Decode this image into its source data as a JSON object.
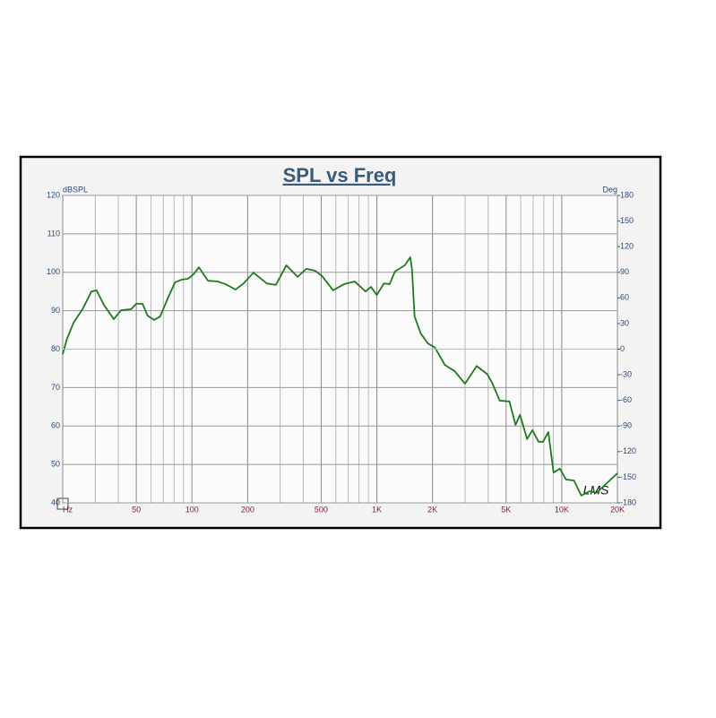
{
  "chart_data": {
    "type": "line",
    "title": "SPL vs Freq",
    "y_label": "dBSPL",
    "y2_label": "Deg",
    "annotation": "LMS",
    "xscale": "log",
    "grid": true,
    "xlim": [
      20,
      20000
    ],
    "xticks": [
      {
        "value": 20,
        "label": "Hz"
      },
      50,
      100,
      200,
      500,
      {
        "value": 1000,
        "label": "1K"
      },
      {
        "value": 2000,
        "label": "2K"
      },
      {
        "value": 5000,
        "label": "5K"
      },
      {
        "value": 10000,
        "label": "10K"
      },
      {
        "value": 20000,
        "label": "20K"
      }
    ],
    "x_minor_ticks": [
      30,
      40,
      60,
      70,
      80,
      90,
      300,
      400,
      600,
      700,
      800,
      900,
      3000,
      4000,
      6000,
      7000,
      8000,
      9000
    ],
    "ylim": [
      40,
      120
    ],
    "yticks": [
      40,
      50,
      60,
      70,
      80,
      90,
      100,
      110,
      120
    ],
    "y2lim": [
      -180,
      180
    ],
    "y2ticks": [
      -180,
      -150,
      -120,
      -90,
      -60,
      -30,
      0,
      30,
      60,
      90,
      120,
      150,
      180
    ],
    "x": [
      20,
      21.1,
      22.9,
      25.6,
      28.6,
      30.5,
      33.4,
      37.8,
      41.3,
      46.9,
      50,
      54,
      57.6,
      62.4,
      67.3,
      74,
      81,
      88,
      95,
      102,
      109,
      122,
      138,
      152,
      172,
      190,
      215,
      254,
      284,
      324,
      373,
      415,
      463,
      506,
      580,
      664,
      759,
      869,
      929,
      1000,
      1092,
      1172,
      1252,
      1416,
      1515,
      1548,
      1600,
      1726,
      1887,
      2061,
      2331,
      2632,
      2997,
      3465,
      3954,
      4224,
      4616,
      5208,
      5624,
      5947,
      6494,
      6939,
      7490,
      7925,
      8459,
      9031,
      9758,
      10542,
      11647,
      12751,
      14095,
      15401,
      17956,
      20000
    ],
    "series": [
      {
        "color": "#1f7a1f",
        "values": [
          78.7,
          82.7,
          86.9,
          90.4,
          95,
          95.3,
          91.5,
          87.8,
          90.1,
          90.4,
          91.8,
          91.8,
          88.7,
          87.6,
          88.5,
          93.2,
          97.4,
          98.1,
          98.3,
          99.5,
          101.3,
          97.8,
          97.6,
          96.9,
          95.5,
          97.1,
          99.9,
          97.1,
          96.7,
          101.8,
          98.8,
          100.9,
          100.4,
          99,
          95.3,
          96.9,
          97.6,
          95,
          96.2,
          94.1,
          97.1,
          96.9,
          100.2,
          101.8,
          103.9,
          100.9,
          88.5,
          84.1,
          81.5,
          80.4,
          75.9,
          74.3,
          71,
          75.6,
          73.5,
          71,
          66.6,
          66.4,
          60.3,
          62.9,
          56.6,
          58.9,
          55.9,
          55.9,
          58.4,
          47.9,
          48.9,
          46.1,
          45.8,
          41.9,
          43,
          42.6,
          45.6,
          47.7
        ]
      },
      {
        "color": "#8fe08f",
        "axis": "y2",
        "x": [
          20,
          20000
        ],
        "values": [
          0,
          0
        ]
      }
    ]
  }
}
